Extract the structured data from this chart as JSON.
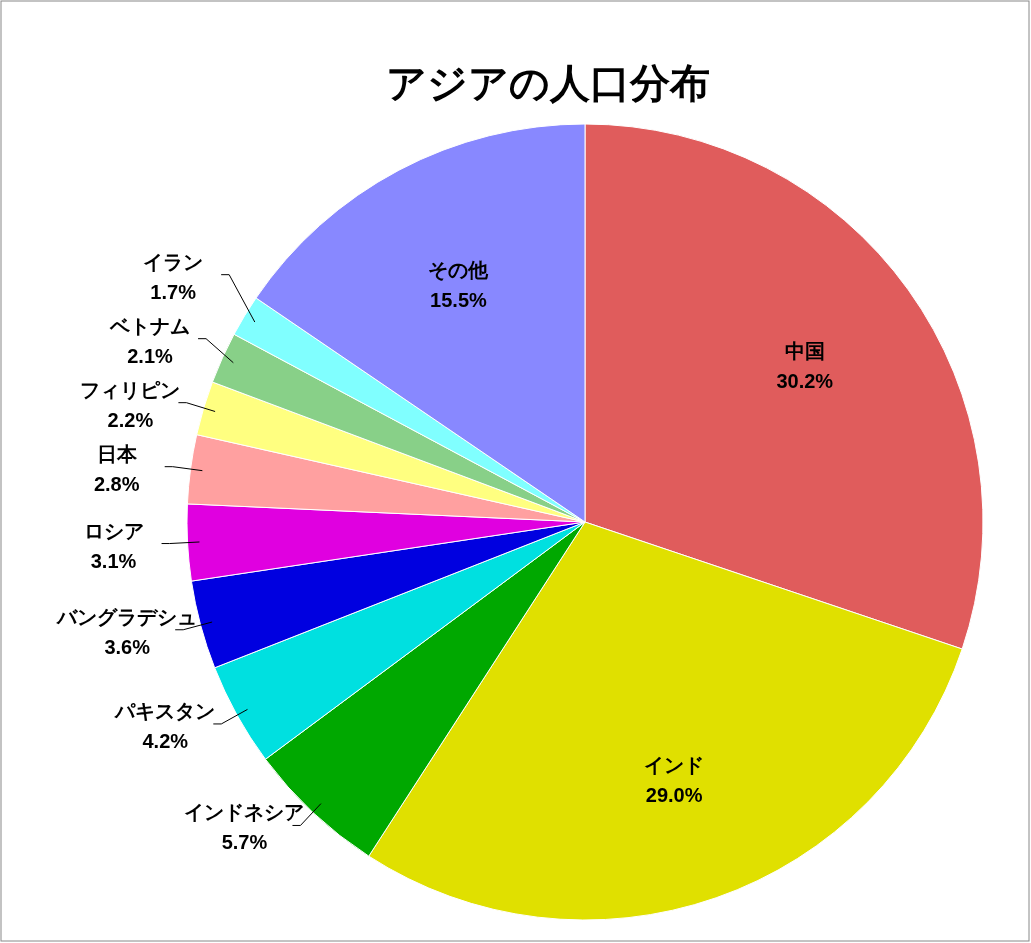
{
  "chart_data": {
    "type": "pie",
    "title": "アジアの人口分布",
    "value_labels": [
      "30.2%",
      "29.0%",
      "5.7%",
      "4.2%",
      "3.6%",
      "3.1%",
      "2.8%",
      "2.2%",
      "2.1%",
      "1.7%",
      "15.5%"
    ],
    "categories": [
      "中国",
      "インド",
      "インドネシア",
      "パキスタン",
      "バングラデシュ",
      "ロシア",
      "日本",
      "フィリピン",
      "ベトナム",
      "イラン",
      "その他"
    ],
    "values": [
      30.2,
      29.0,
      5.7,
      4.2,
      3.6,
      3.1,
      2.8,
      2.2,
      2.1,
      1.7,
      15.5
    ],
    "colors": [
      "#e05c5c",
      "#e0e000",
      "#00a800",
      "#00e0e0",
      "#0000e0",
      "#e000e0",
      "#ffa0a0",
      "#ffff80",
      "#88d088",
      "#80ffff",
      "#8888ff"
    ]
  }
}
